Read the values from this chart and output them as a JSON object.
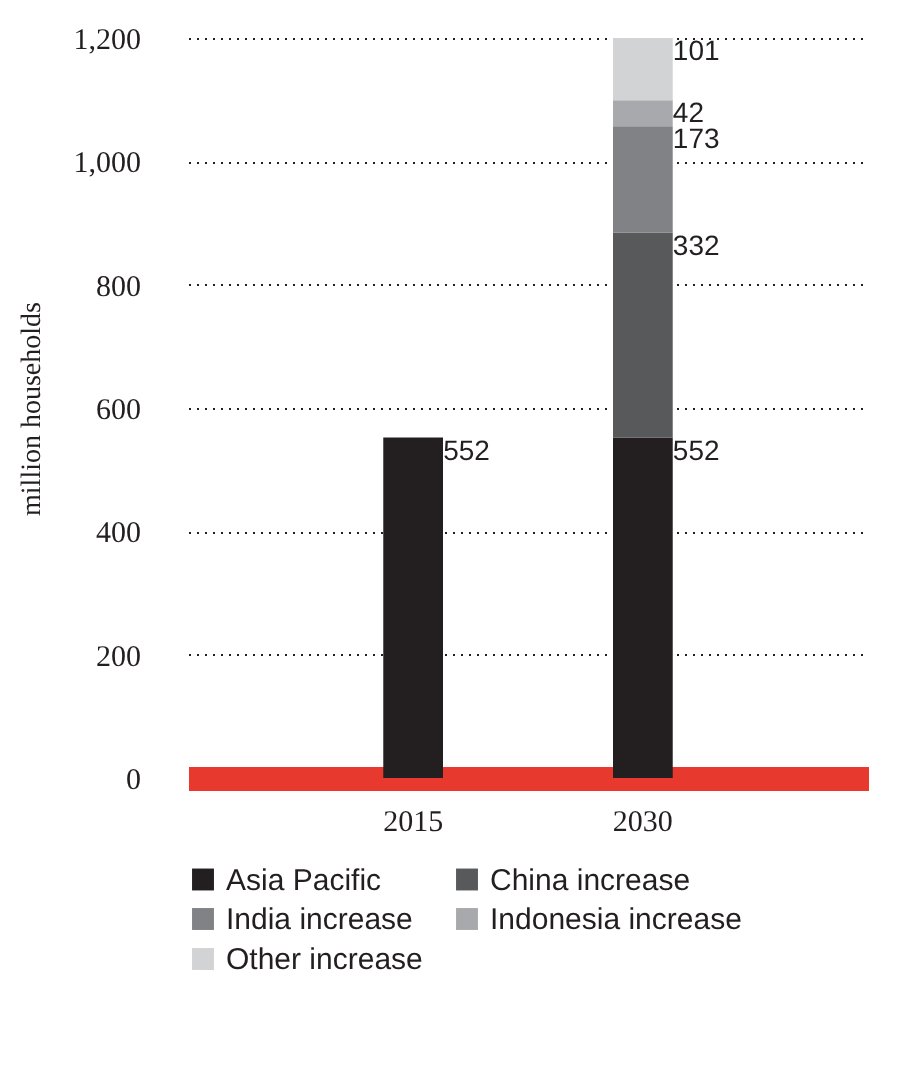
{
  "chart_data": {
    "type": "bar",
    "stacked": true,
    "ylabel": "million households",
    "categories": [
      "2015",
      "2030"
    ],
    "series": [
      {
        "name": "Asia Pacific",
        "color": "#231f20",
        "values": [
          552,
          552
        ]
      },
      {
        "name": "China increase",
        "color": "#58595b",
        "values": [
          null,
          332
        ]
      },
      {
        "name": "India increase",
        "color": "#808285",
        "values": [
          null,
          173
        ]
      },
      {
        "name": "Indonesia increase",
        "color": "#a7a9ac",
        "values": [
          null,
          42
        ]
      },
      {
        "name": "Other increase",
        "color": "#d1d3d4",
        "values": [
          null,
          101
        ]
      }
    ],
    "ylim": [
      0,
      1200
    ],
    "yticks": [
      0,
      200,
      400,
      600,
      800,
      {
        "value": 1000,
        "label": "1,000"
      },
      {
        "value": 1200,
        "label": "1,200"
      }
    ],
    "grid": "y",
    "legend": "bottom",
    "data_labels": true
  }
}
